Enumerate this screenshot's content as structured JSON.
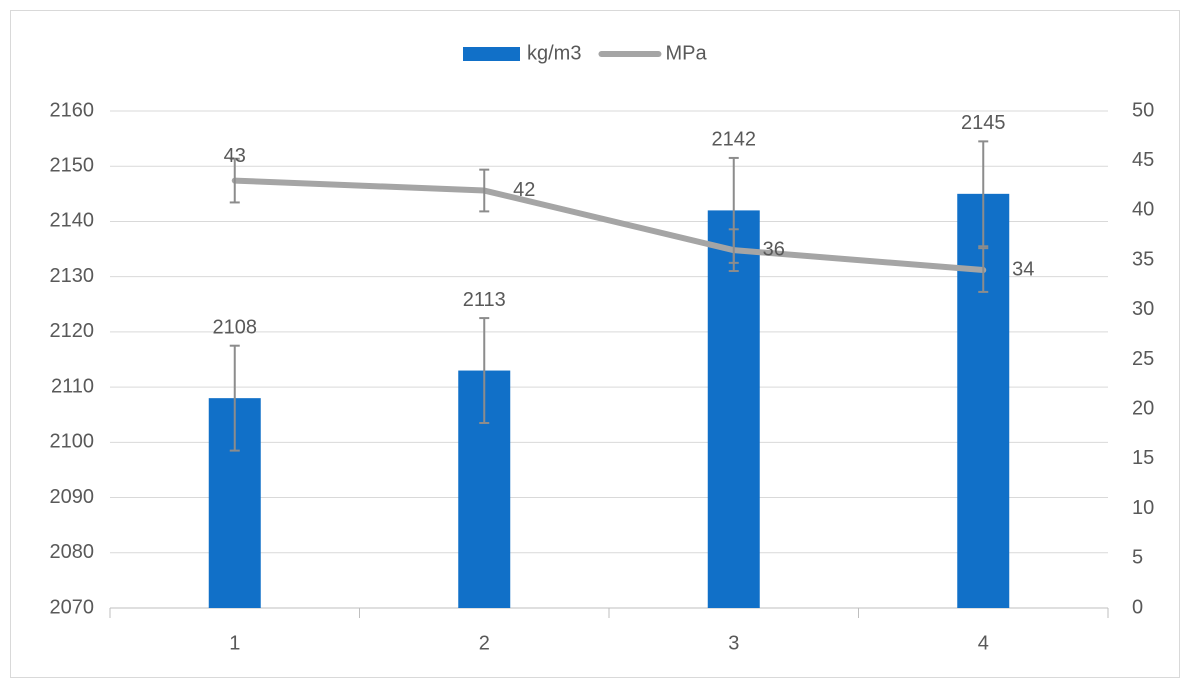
{
  "chart_data": {
    "type": "bar-line",
    "categories": [
      "1",
      "2",
      "3",
      "4"
    ],
    "series": [
      {
        "name": "kg/m3",
        "type": "bar",
        "color": "#1170c8",
        "values": [
          2108,
          2113,
          2142,
          2145
        ],
        "errors": [
          9.5,
          9.5,
          9.5,
          9.5
        ]
      },
      {
        "name": "MPa",
        "type": "line",
        "axis": "y2",
        "color": "#a5a5a5",
        "values": [
          43,
          42,
          36,
          34
        ],
        "errors": [
          2.2,
          2.1,
          2.1,
          2.2
        ]
      }
    ],
    "ylim": [
      2070,
      2160
    ],
    "yticks": [
      2070,
      2080,
      2090,
      2100,
      2110,
      2120,
      2130,
      2140,
      2150,
      2160
    ],
    "y2lim": [
      0,
      50
    ],
    "y2ticks": [
      0,
      5,
      10,
      15,
      20,
      25,
      30,
      35,
      40,
      45,
      50
    ],
    "grid": true,
    "legend": "top"
  }
}
